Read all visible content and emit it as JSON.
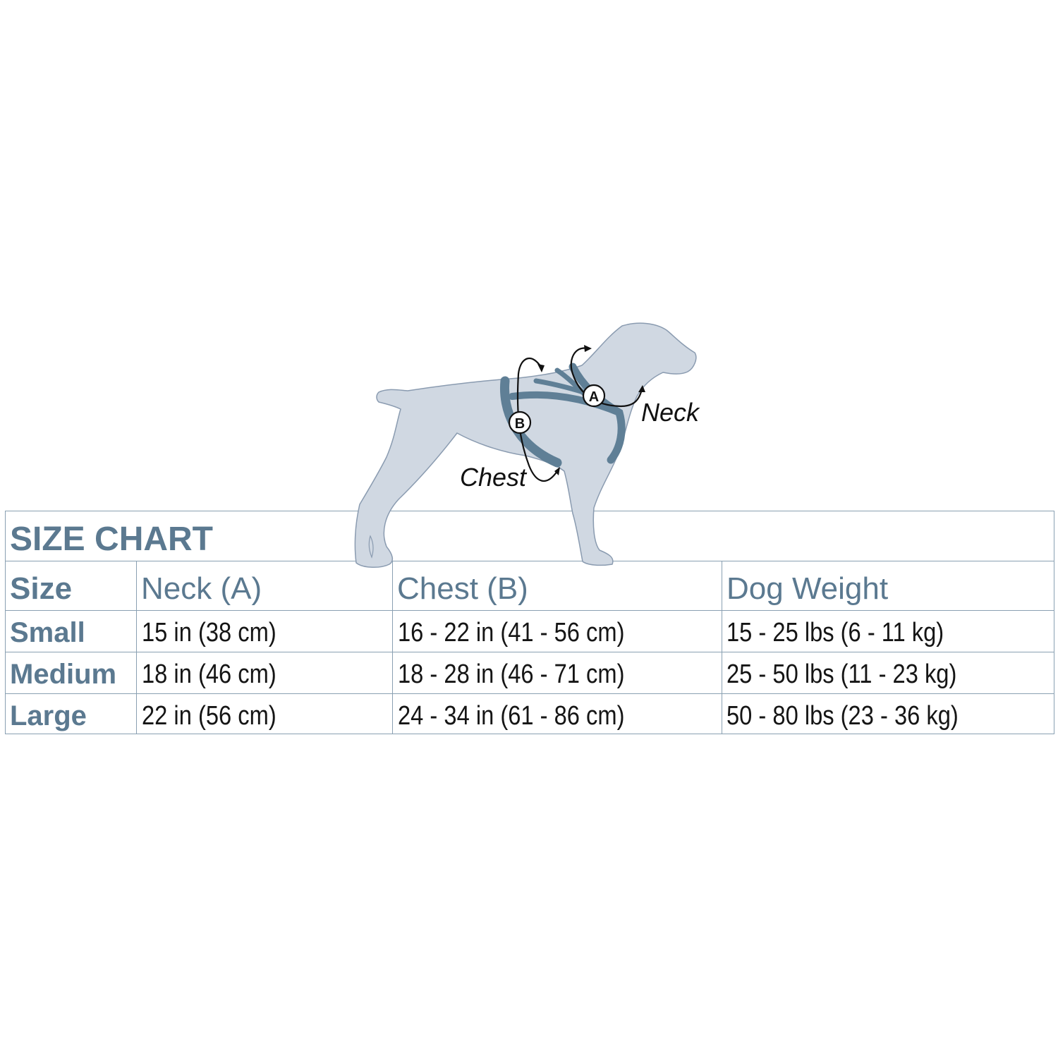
{
  "title": "SIZE CHART",
  "diagram": {
    "neck_label": "Neck",
    "chest_label": "Chest",
    "marker_a": "A",
    "marker_b": "B"
  },
  "colors": {
    "dog_fill": "#d0d8e2",
    "harness": "#5f7f96",
    "heading_text": "#5b7990",
    "grid": "#8aa0b2"
  },
  "table": {
    "headers": [
      "Size",
      "Neck (A)",
      "Chest (B)",
      "Dog Weight"
    ],
    "rows": [
      {
        "size": "Small",
        "neck": "15 in  (38 cm)",
        "chest": "16 - 22 in  (41 - 56 cm)",
        "weight": "15 - 25 lbs  (6 - 11 kg)"
      },
      {
        "size": "Medium",
        "neck": "18 in  (46 cm)",
        "chest": "18 - 28 in  (46 - 71 cm)",
        "weight": "25 - 50 lbs  (11 - 23 kg)"
      },
      {
        "size": "Large",
        "neck": "22 in  (56 cm)",
        "chest": "24 - 34 in  (61 - 86 cm)",
        "weight": "50 - 80 lbs  (23 - 36 kg)"
      }
    ]
  }
}
